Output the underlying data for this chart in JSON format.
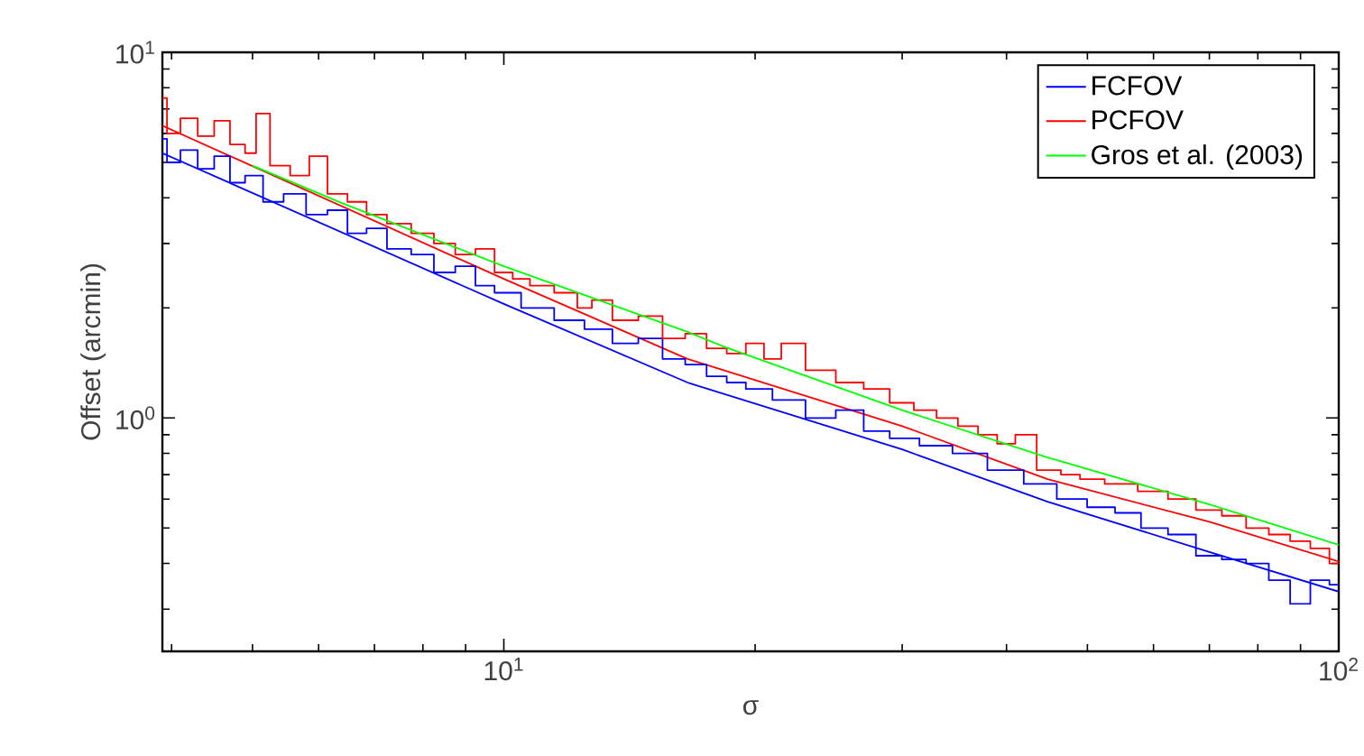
{
  "chart_data": {
    "type": "line",
    "xlabel": "σ",
    "ylabel": "Offset (arcmin)",
    "log": "xy",
    "legend": "top right",
    "xlim": [
      3.9,
      100
    ],
    "ylim": [
      0.23,
      10
    ],
    "xticks": [
      {
        "value": 10,
        "label": "10$^{1}$"
      },
      {
        "value": 100,
        "label": "10$^{2}$"
      }
    ],
    "yticks": [
      {
        "value": 1,
        "label": "10$^{0}$"
      },
      {
        "value": 10,
        "label": "10$^{1}$"
      }
    ],
    "series": [
      {
        "name": "FCFOV",
        "color": "#0000ff",
        "type": "step",
        "x": [
          3.9,
          4.0,
          4.2,
          4.4,
          4.6,
          4.8,
          5.0,
          5.3,
          5.6,
          6.0,
          6.3,
          6.7,
          7.0,
          7.5,
          8.0,
          8.5,
          9.0,
          9.5,
          10,
          11,
          12,
          13,
          14,
          15,
          16,
          17,
          18,
          19,
          20,
          22,
          24,
          26,
          28,
          30,
          33,
          36,
          40,
          44,
          48,
          52,
          56,
          60,
          65,
          70,
          75,
          80,
          85,
          90,
          95,
          100
        ],
        "values": [
          5.8,
          5.0,
          5.4,
          4.8,
          5.2,
          4.4,
          4.6,
          3.9,
          4.1,
          3.6,
          3.7,
          3.2,
          3.3,
          2.9,
          2.8,
          2.5,
          2.6,
          2.3,
          2.2,
          2.0,
          1.85,
          1.75,
          1.6,
          1.65,
          1.45,
          1.4,
          1.3,
          1.25,
          1.2,
          1.12,
          1.0,
          1.05,
          0.92,
          0.88,
          0.84,
          0.8,
          0.72,
          0.66,
          0.6,
          0.57,
          0.55,
          0.5,
          0.48,
          0.42,
          0.41,
          0.4,
          0.36,
          0.31,
          0.36,
          0.35
        ]
      },
      {
        "name": "PCFOV",
        "color": "#ff0000",
        "type": "step",
        "x": [
          3.9,
          4.0,
          4.2,
          4.4,
          4.6,
          4.8,
          5.0,
          5.1,
          5.4,
          5.7,
          6.0,
          6.3,
          6.7,
          7.0,
          7.5,
          8.0,
          8.5,
          9.0,
          9.5,
          10,
          10.5,
          11,
          12,
          12.5,
          13,
          14,
          15,
          16,
          17,
          18,
          19,
          20,
          21,
          22,
          24,
          26,
          28,
          30,
          32,
          34,
          36,
          38,
          40,
          42,
          45,
          48,
          50,
          55,
          60,
          65,
          70,
          75,
          80,
          85,
          90,
          95,
          100
        ],
        "values": [
          7.5,
          6.0,
          6.6,
          5.9,
          6.5,
          5.6,
          5.3,
          6.8,
          4.9,
          4.6,
          5.2,
          4.1,
          3.9,
          3.6,
          3.4,
          3.2,
          3.0,
          2.8,
          2.9,
          2.5,
          2.4,
          2.3,
          2.2,
          2.0,
          2.1,
          1.85,
          1.9,
          1.65,
          1.7,
          1.55,
          1.5,
          1.6,
          1.45,
          1.6,
          1.35,
          1.25,
          1.2,
          1.1,
          1.05,
          1.0,
          0.95,
          0.9,
          0.85,
          0.9,
          0.72,
          0.7,
          0.68,
          0.66,
          0.63,
          0.6,
          0.56,
          0.54,
          0.5,
          0.48,
          0.46,
          0.44,
          0.4
        ]
      },
      {
        "name": "Gros et al. (2003)",
        "color": "#00ff00",
        "x": [
          5,
          6.4,
          10,
          16.6,
          18.3,
          30,
          44.8,
          70,
          100
        ],
        "values": [
          4.9,
          3.87,
          2.6,
          1.72,
          1.57,
          1.05,
          0.78,
          0.58,
          0.45
        ]
      },
      {
        "color": "#0000ff",
        "x": [
          3.9,
          10,
          16.6,
          30,
          44.8,
          70,
          100
        ],
        "values": [
          5.3,
          2.05,
          1.25,
          0.82,
          0.59,
          0.43,
          0.335
        ]
      },
      {
        "color": "#ff0000",
        "x": [
          3.9,
          10,
          16.6,
          30,
          44.8,
          70,
          100
        ],
        "values": [
          6.3,
          2.4,
          1.45,
          0.95,
          0.68,
          0.52,
          0.405
        ]
      }
    ]
  }
}
